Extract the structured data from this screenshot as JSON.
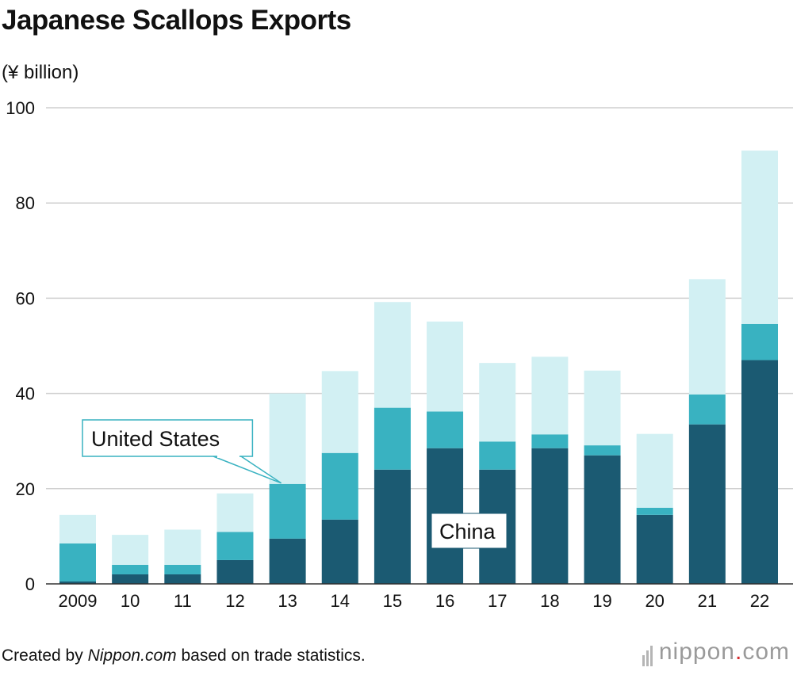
{
  "title": "Japanese Scallops Exports",
  "unit": "(¥ billion)",
  "footer": {
    "prefix": "Created by ",
    "source": "Nippon.com",
    "suffix": " based on trade statistics."
  },
  "logo": {
    "name": "nippon",
    "dot": ".",
    "tld": "com"
  },
  "chart_data": {
    "type": "bar",
    "stacked": true,
    "categories": [
      "2009",
      "10",
      "11",
      "12",
      "13",
      "14",
      "15",
      "16",
      "17",
      "18",
      "19",
      "20",
      "21",
      "22"
    ],
    "ylim": [
      0,
      100
    ],
    "yticks": [
      0,
      20,
      40,
      60,
      80,
      100
    ],
    "grid": true,
    "series": [
      {
        "name": "China",
        "color": "#1b5a72",
        "values": [
          0.5,
          2,
          2,
          5,
          9.5,
          13.5,
          24,
          28.5,
          24,
          28.5,
          27,
          14.5,
          33.5,
          47
        ]
      },
      {
        "name": "United States",
        "color": "#39b2c1",
        "values": [
          8,
          2,
          2,
          5.9,
          11.5,
          14,
          13,
          7.7,
          5.9,
          2.9,
          2.1,
          1.5,
          6.3,
          7.6
        ]
      },
      {
        "name": "",
        "color": "#d2f0f3",
        "values": [
          6,
          6.3,
          7.4,
          8.1,
          19.0,
          17.2,
          22.2,
          18.9,
          16.5,
          16.3,
          15.7,
          15.5,
          24.2,
          36.4
        ]
      }
    ],
    "annotations": [
      {
        "label": "United States"
      },
      {
        "label": "China"
      }
    ]
  }
}
